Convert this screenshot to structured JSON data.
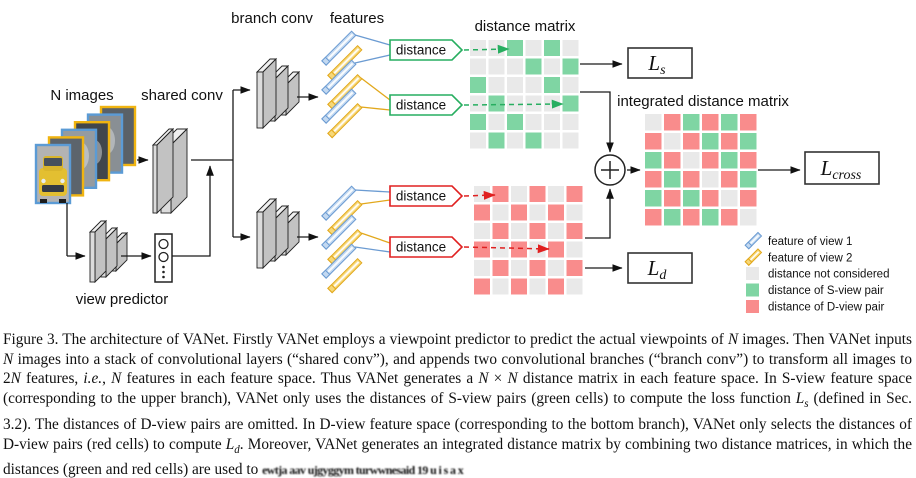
{
  "figure": {
    "labels": {
      "branch_conv": "branch conv",
      "features": "features",
      "distance_matrix": "distance matrix",
      "n_images": "N images",
      "shared_conv": "shared conv",
      "view_predictor": "view predictor",
      "integrated_distance_matrix": "integrated distance matrix"
    },
    "distance_label": "distance",
    "loss": {
      "ls_main": "L",
      "ls_sub": "s",
      "ld_main": "L",
      "ld_sub": "d",
      "lcross_main": "L",
      "lcross_sub": "cross"
    },
    "legend": [
      "feature of view 1",
      "feature of view 2",
      "distance not considered",
      "distance of S-view pair",
      "distance of D-view pair"
    ],
    "colors": {
      "cell_gray": "#e9e9e9",
      "cell_green": "#7fd5a3",
      "cell_red": "#f98c8c",
      "view1_fill": "#c3d9f1",
      "view1_stroke": "#6b9bd2",
      "view2_fill": "#f7d878",
      "view2_stroke": "#e2a81c",
      "image_border_blue": "#5b9bd5",
      "image_border_yellow": "#f0b411",
      "distance_green": "#27ae60",
      "distance_red": "#e02020"
    },
    "image_stack_borders": [
      "blue",
      "yellow",
      "blue",
      "yellow",
      "blue",
      "yellow"
    ],
    "matrices": {
      "s_view": {
        "rows": [
          "..g.g.",
          "...g.g",
          "g...g.",
          ".g...g",
          "g.g...",
          ".g.g.."
        ]
      },
      "d_view": {
        "rows": [
          ".r.r.r",
          "r.r.r.",
          ".r.r.r",
          "r.r.r.",
          ".r.r.r",
          "r.r.r."
        ]
      },
      "integrated": {
        "rows": [
          ".rgrgr",
          "r.rgrg",
          "gr.rgr",
          "rgr.rg",
          "grgr.r",
          "rgrgr."
        ]
      }
    }
  },
  "caption": {
    "segments": [
      {
        "t": "Figure 3. The architecture of VANet. Firstly VANet employs a viewpoint predictor to predict the actual viewpoints of ",
        "s": "n"
      },
      {
        "t": "N",
        "s": "i"
      },
      {
        "t": " images. Then VANet inputs ",
        "s": "n"
      },
      {
        "t": "N",
        "s": "i"
      },
      {
        "t": " images into a stack of convolutional layers (“shared conv”), and appends two convolutional branches (“branch conv”) to transform all images to 2",
        "s": "n"
      },
      {
        "t": "N",
        "s": "i"
      },
      {
        "t": " features, ",
        "s": "n"
      },
      {
        "t": "i.e.",
        "s": "i"
      },
      {
        "t": ", ",
        "s": "n"
      },
      {
        "t": "N",
        "s": "i"
      },
      {
        "t": " features in each feature space. Thus VANet generates a ",
        "s": "n"
      },
      {
        "t": "N",
        "s": "i"
      },
      {
        "t": " × ",
        "s": "n"
      },
      {
        "t": "N",
        "s": "i"
      },
      {
        "t": " distance matrix in each feature space. In S-view feature space (corresponding to the upper branch), VANet only uses the distances of S-view pairs (green cells) to compute the loss function ",
        "s": "n"
      },
      {
        "t": "L",
        "s": "i"
      },
      {
        "t": "s",
        "s": "sub"
      },
      {
        "t": " (defined in Sec. 3.2). The distances of D-view pairs are omitted. In D-view feature space (corresponding to the bottom branch), VANet only selects the distances of D-view pairs (red cells) to compute ",
        "s": "n"
      },
      {
        "t": "L",
        "s": "i"
      },
      {
        "t": "d",
        "s": "sub"
      },
      {
        "t": ". Moreover, VANet generates an integrated distance matrix by combining two distance matrices, in which the distances (green and red cells) are used to ",
        "s": "n"
      },
      {
        "t": "ewtja aav ujgyggym turwwnesaid 19 u i s a x",
        "s": "garbled"
      }
    ]
  }
}
